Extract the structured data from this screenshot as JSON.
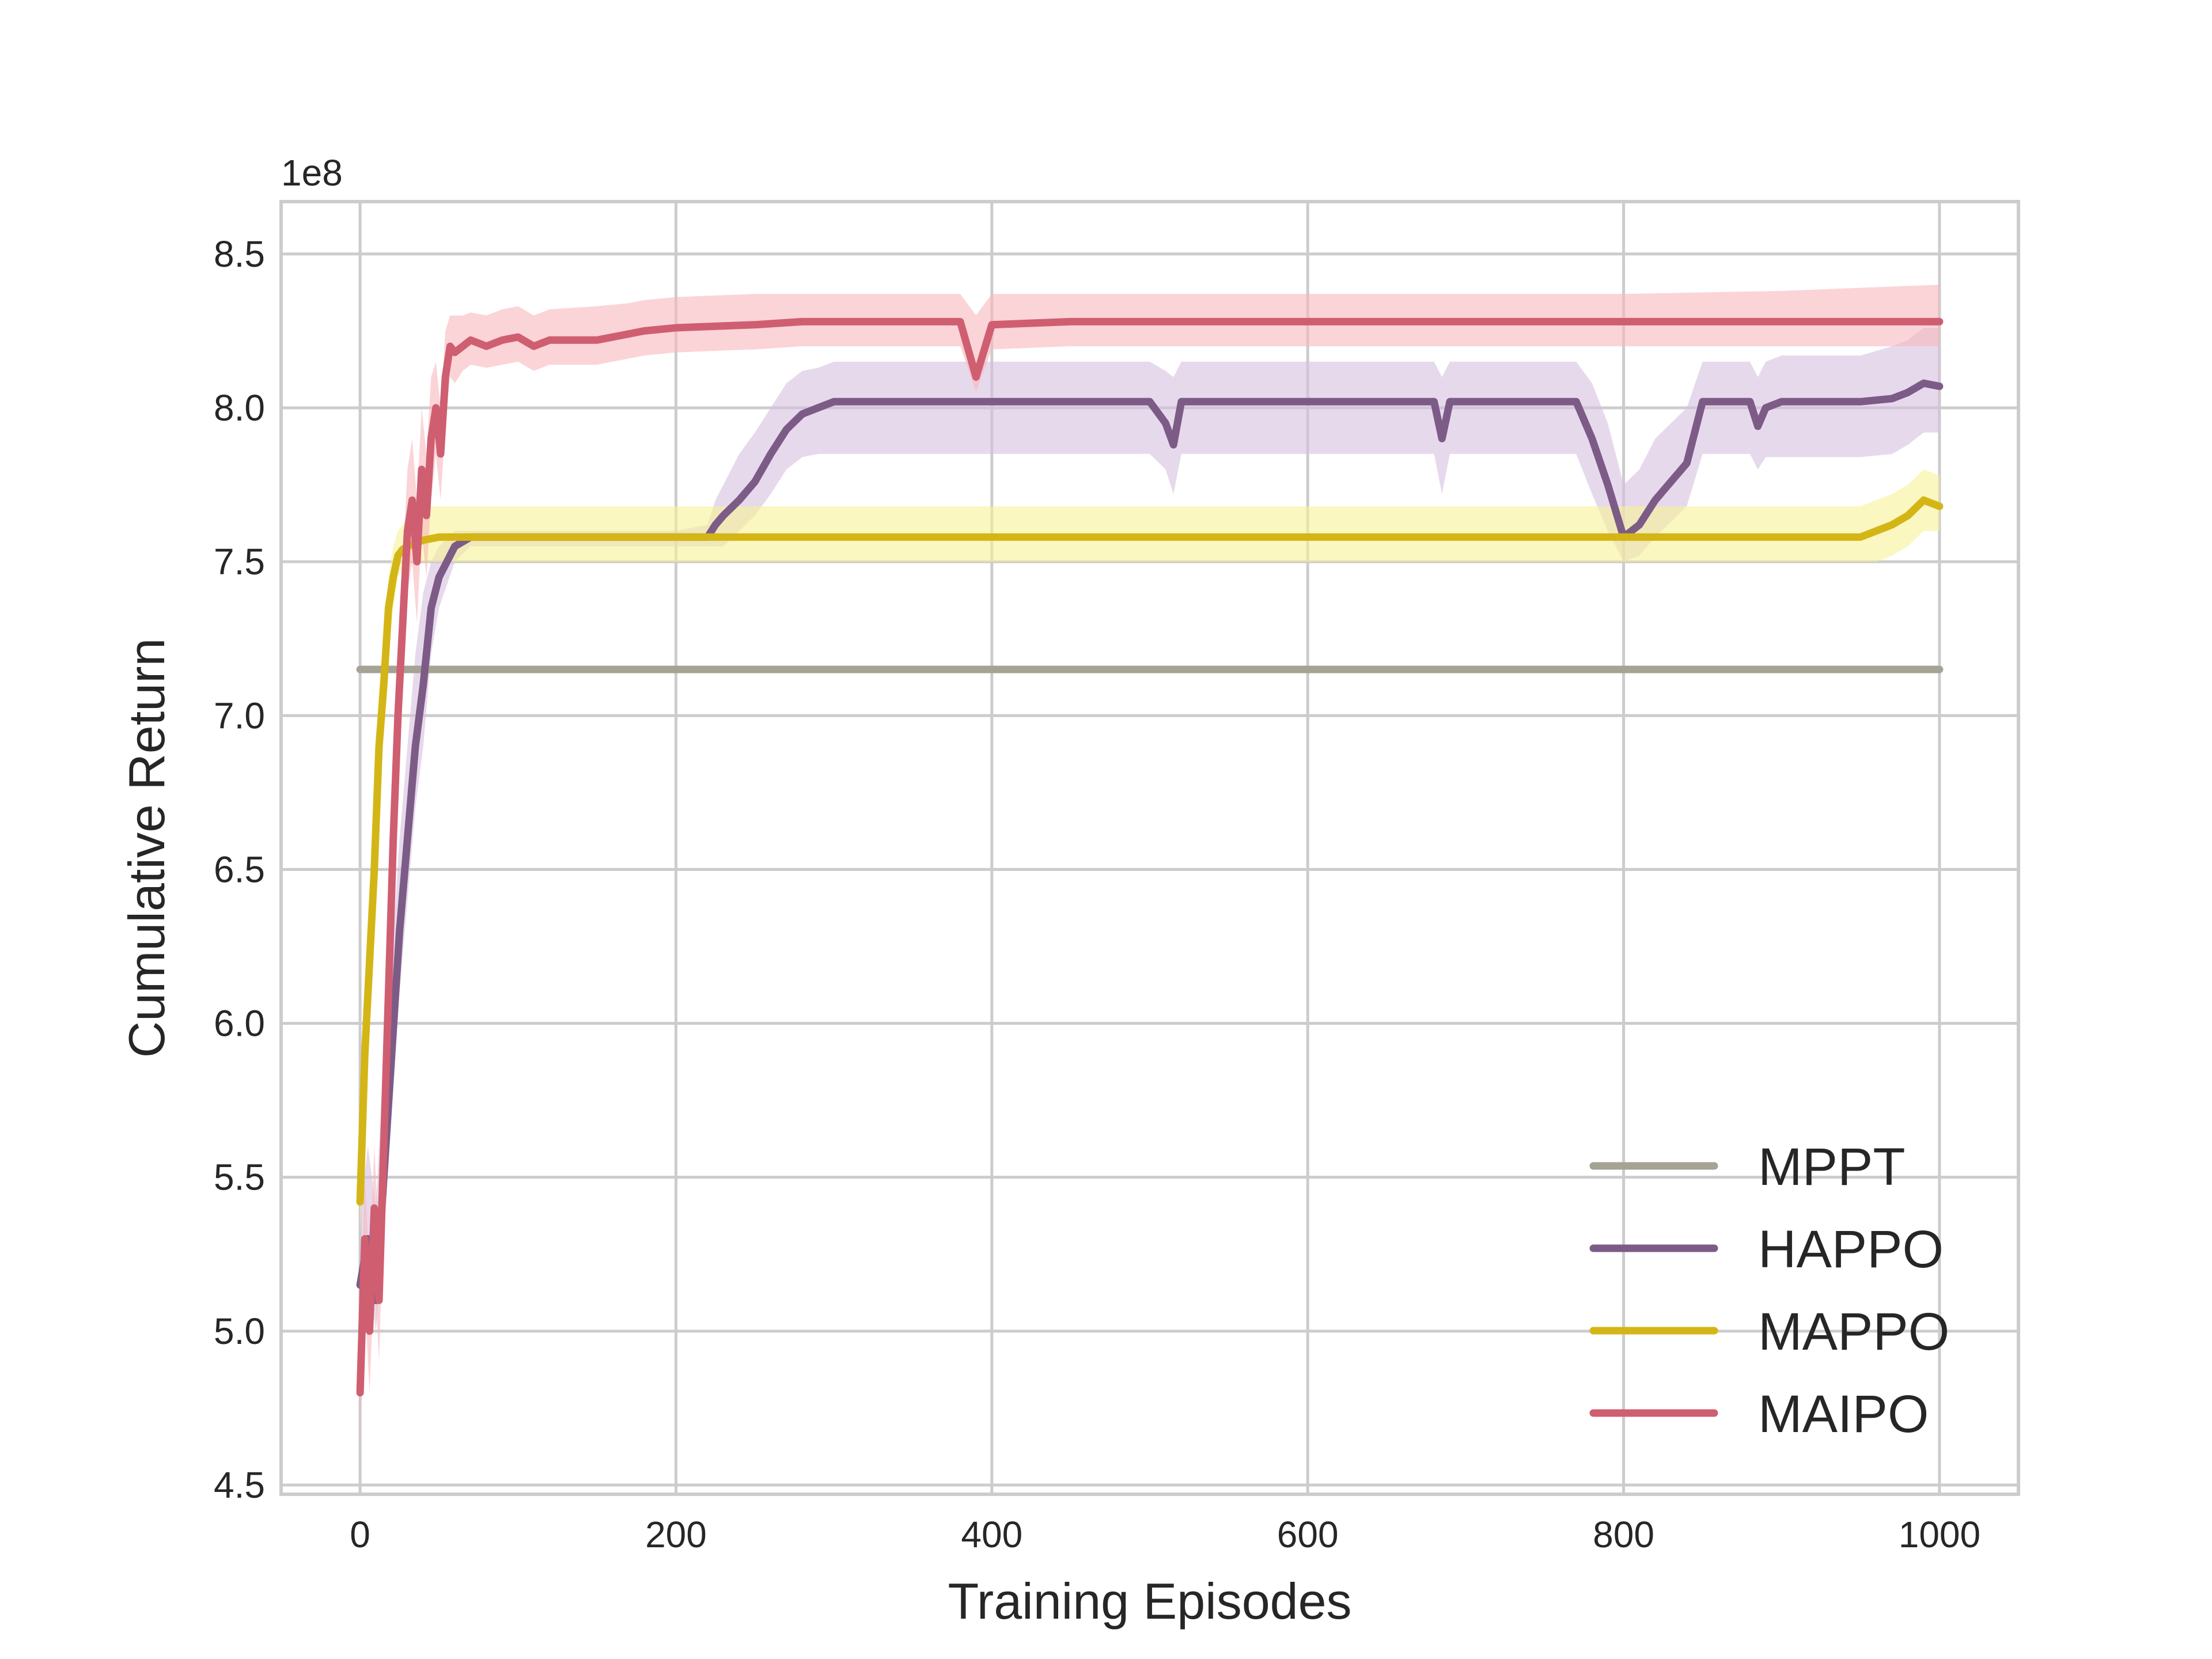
{
  "chart_data": {
    "type": "line",
    "title": "",
    "xlabel": "Training Episodes",
    "ylabel": "Cumulative Return",
    "y_offset_label": "1e8",
    "xlim": [
      -50,
      1050
    ],
    "ylim": [
      4.47,
      8.67
    ],
    "x_ticks": [
      0,
      200,
      400,
      600,
      800,
      1000
    ],
    "y_ticks": [
      4.5,
      5.0,
      5.5,
      6.0,
      6.5,
      7.0,
      7.5,
      8.0,
      8.5
    ],
    "y_tick_labels": [
      "4.5",
      "5.0",
      "5.5",
      "6.0",
      "6.5",
      "7.0",
      "7.5",
      "8.0",
      "8.5"
    ],
    "grid": true,
    "legend_position": "lower-right",
    "series": [
      {
        "name": "MPPT",
        "color": "#a5a393",
        "band_color": "",
        "x": [
          0,
          1000
        ],
        "y": [
          7.15,
          7.15
        ],
        "band": []
      },
      {
        "name": "HAPPO",
        "color": "#7d5b87",
        "band_color": "#d7bfe0",
        "x": [
          0,
          5,
          10,
          15,
          20,
          25,
          30,
          35,
          40,
          45,
          50,
          60,
          70,
          100,
          150,
          200,
          220,
          225,
          230,
          240,
          250,
          260,
          270,
          280,
          290,
          300,
          350,
          400,
          500,
          510,
          515,
          520,
          600,
          680,
          685,
          690,
          700,
          770,
          780,
          790,
          800,
          810,
          820,
          840,
          850,
          870,
          880,
          885,
          890,
          900,
          950,
          970,
          980,
          990,
          1000
        ],
        "y": [
          5.15,
          5.3,
          5.1,
          5.5,
          5.9,
          6.3,
          6.6,
          6.9,
          7.1,
          7.35,
          7.45,
          7.55,
          7.58,
          7.58,
          7.58,
          7.58,
          7.58,
          7.62,
          7.65,
          7.7,
          7.76,
          7.85,
          7.93,
          7.98,
          8.0,
          8.02,
          8.02,
          8.02,
          8.02,
          7.95,
          7.88,
          8.02,
          8.02,
          8.02,
          7.9,
          8.02,
          8.02,
          8.02,
          7.9,
          7.75,
          7.58,
          7.62,
          7.7,
          7.82,
          8.02,
          8.02,
          8.02,
          7.94,
          8.0,
          8.02,
          8.02,
          8.03,
          8.05,
          8.08,
          8.07
        ],
        "band": [
          [
            5.0,
            5.4
          ],
          [
            5.2,
            5.6
          ],
          [
            5.0,
            5.4
          ],
          [
            5.3,
            5.9
          ],
          [
            5.7,
            6.2
          ],
          [
            6.1,
            6.6
          ],
          [
            6.4,
            6.9
          ],
          [
            6.7,
            7.2
          ],
          [
            6.9,
            7.4
          ],
          [
            7.2,
            7.5
          ],
          [
            7.35,
            7.55
          ],
          [
            7.5,
            7.6
          ],
          [
            7.55,
            7.6
          ],
          [
            7.55,
            7.6
          ],
          [
            7.55,
            7.6
          ],
          [
            7.55,
            7.6
          ],
          [
            7.55,
            7.62
          ],
          [
            7.55,
            7.7
          ],
          [
            7.55,
            7.75
          ],
          [
            7.6,
            7.85
          ],
          [
            7.65,
            7.92
          ],
          [
            7.72,
            8.0
          ],
          [
            7.8,
            8.08
          ],
          [
            7.84,
            8.12
          ],
          [
            7.85,
            8.13
          ],
          [
            7.85,
            8.15
          ],
          [
            7.85,
            8.15
          ],
          [
            7.85,
            8.15
          ],
          [
            7.85,
            8.15
          ],
          [
            7.8,
            8.12
          ],
          [
            7.72,
            8.1
          ],
          [
            7.85,
            8.15
          ],
          [
            7.85,
            8.15
          ],
          [
            7.85,
            8.15
          ],
          [
            7.72,
            8.1
          ],
          [
            7.85,
            8.15
          ],
          [
            7.85,
            8.15
          ],
          [
            7.85,
            8.15
          ],
          [
            7.72,
            8.08
          ],
          [
            7.6,
            7.95
          ],
          [
            7.5,
            7.75
          ],
          [
            7.52,
            7.8
          ],
          [
            7.58,
            7.9
          ],
          [
            7.68,
            8.0
          ],
          [
            7.85,
            8.15
          ],
          [
            7.85,
            8.15
          ],
          [
            7.85,
            8.15
          ],
          [
            7.8,
            8.1
          ],
          [
            7.84,
            8.15
          ],
          [
            7.84,
            8.17
          ],
          [
            7.84,
            8.17
          ],
          [
            7.85,
            8.2
          ],
          [
            7.88,
            8.22
          ],
          [
            7.92,
            8.26
          ],
          [
            7.92,
            8.26
          ]
        ]
      },
      {
        "name": "MAPPO",
        "color": "#d4b516",
        "band_color": "#f7f196",
        "x": [
          0,
          3,
          6,
          9,
          12,
          15,
          18,
          21,
          24,
          27,
          30,
          35,
          40,
          50,
          60,
          80,
          100,
          200,
          400,
          600,
          800,
          900,
          950,
          960,
          970,
          980,
          990,
          1000
        ],
        "y": [
          5.42,
          5.9,
          6.2,
          6.5,
          6.9,
          7.1,
          7.35,
          7.45,
          7.52,
          7.54,
          7.55,
          7.56,
          7.57,
          7.58,
          7.58,
          7.58,
          7.58,
          7.58,
          7.58,
          7.58,
          7.58,
          7.58,
          7.58,
          7.6,
          7.62,
          7.65,
          7.7,
          7.68
        ],
        "band": [
          [
            5.3,
            5.6
          ],
          [
            5.7,
            6.1
          ],
          [
            6.0,
            6.4
          ],
          [
            6.3,
            6.7
          ],
          [
            6.7,
            7.1
          ],
          [
            6.95,
            7.25
          ],
          [
            7.2,
            7.45
          ],
          [
            7.35,
            7.55
          ],
          [
            7.45,
            7.6
          ],
          [
            7.48,
            7.62
          ],
          [
            7.5,
            7.65
          ],
          [
            7.5,
            7.66
          ],
          [
            7.5,
            7.68
          ],
          [
            7.5,
            7.68
          ],
          [
            7.5,
            7.68
          ],
          [
            7.5,
            7.68
          ],
          [
            7.5,
            7.68
          ],
          [
            7.5,
            7.68
          ],
          [
            7.5,
            7.68
          ],
          [
            7.5,
            7.68
          ],
          [
            7.5,
            7.68
          ],
          [
            7.5,
            7.68
          ],
          [
            7.5,
            7.68
          ],
          [
            7.5,
            7.7
          ],
          [
            7.52,
            7.72
          ],
          [
            7.55,
            7.75
          ],
          [
            7.6,
            7.8
          ],
          [
            7.6,
            7.78
          ]
        ]
      },
      {
        "name": "MAIPO",
        "color": "#cf5e71",
        "band_color": "#f8b7bc",
        "x": [
          0,
          3,
          6,
          9,
          12,
          15,
          18,
          21,
          24,
          27,
          30,
          33,
          36,
          39,
          42,
          45,
          48,
          51,
          54,
          57,
          60,
          65,
          70,
          80,
          90,
          100,
          110,
          120,
          150,
          170,
          180,
          200,
          250,
          280,
          300,
          350,
          380,
          390,
          400,
          450,
          500,
          600,
          700,
          800,
          900,
          1000
        ],
        "y": [
          4.8,
          5.3,
          5.0,
          5.4,
          5.1,
          5.6,
          6.1,
          6.6,
          7.0,
          7.3,
          7.6,
          7.7,
          7.5,
          7.8,
          7.65,
          7.9,
          8.0,
          7.85,
          8.1,
          8.2,
          8.18,
          8.2,
          8.22,
          8.2,
          8.22,
          8.23,
          8.2,
          8.22,
          8.22,
          8.24,
          8.25,
          8.26,
          8.27,
          8.28,
          8.28,
          8.28,
          8.28,
          8.1,
          8.27,
          8.28,
          8.28,
          8.28,
          8.28,
          8.28,
          8.28,
          8.28
        ],
        "band": [
          [
            4.6,
            5.0
          ],
          [
            5.1,
            5.5
          ],
          [
            4.8,
            5.2
          ],
          [
            5.2,
            5.6
          ],
          [
            4.9,
            5.3
          ],
          [
            5.4,
            5.8
          ],
          [
            5.9,
            6.3
          ],
          [
            6.4,
            6.8
          ],
          [
            6.8,
            7.2
          ],
          [
            7.1,
            7.5
          ],
          [
            7.4,
            7.8
          ],
          [
            7.5,
            7.9
          ],
          [
            7.3,
            7.7
          ],
          [
            7.6,
            8.0
          ],
          [
            7.45,
            7.85
          ],
          [
            7.7,
            8.1
          ],
          [
            7.85,
            8.15
          ],
          [
            7.7,
            8.0
          ],
          [
            7.95,
            8.25
          ],
          [
            8.1,
            8.3
          ],
          [
            8.08,
            8.3
          ],
          [
            8.12,
            8.3
          ],
          [
            8.14,
            8.31
          ],
          [
            8.13,
            8.3
          ],
          [
            8.14,
            8.32
          ],
          [
            8.15,
            8.33
          ],
          [
            8.12,
            8.3
          ],
          [
            8.14,
            8.32
          ],
          [
            8.14,
            8.33
          ],
          [
            8.16,
            8.34
          ],
          [
            8.17,
            8.35
          ],
          [
            8.18,
            8.36
          ],
          [
            8.19,
            8.37
          ],
          [
            8.2,
            8.37
          ],
          [
            8.2,
            8.37
          ],
          [
            8.2,
            8.37
          ],
          [
            8.2,
            8.37
          ],
          [
            8.05,
            8.3
          ],
          [
            8.19,
            8.37
          ],
          [
            8.2,
            8.37
          ],
          [
            8.2,
            8.37
          ],
          [
            8.2,
            8.37
          ],
          [
            8.2,
            8.37
          ],
          [
            8.2,
            8.37
          ],
          [
            8.2,
            8.38
          ],
          [
            8.2,
            8.4
          ]
        ]
      }
    ]
  }
}
